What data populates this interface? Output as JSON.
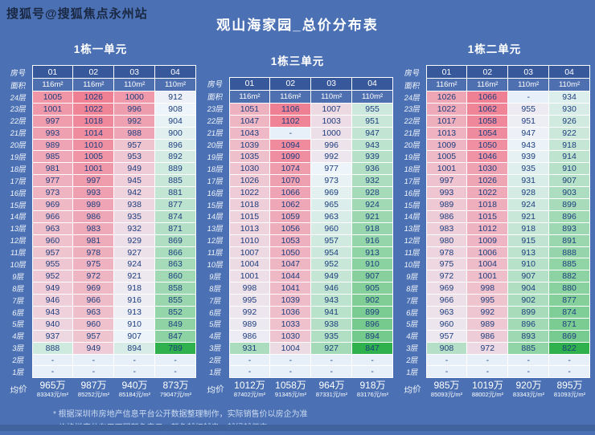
{
  "watermark": "搜狐号@搜狐焦点永州站",
  "title": "观山海家园_总价分布表",
  "labels": {
    "room_no": "房号",
    "area": "面积",
    "avg": "均价"
  },
  "footnotes": [
    "* 根据深圳市房地产信息平台公开数据整理制作，实际销售价以房企为准",
    "* 价格梯度分布用不同颜色表示，颜色越红越贵，越绿越便宜"
  ],
  "colors": {
    "background": "#4b71b4",
    "header_bg": "#37589b",
    "area_bg": "#4f70b0",
    "grid": "#ffffff",
    "cell_text": "#1d3d7d",
    "high_color": "#ef8094",
    "mid_color": "#edf4fa",
    "low_color": "#2fb14d",
    "empty_cell": "#e7f0f9"
  },
  "chart_data": {
    "type": "heatmap-table",
    "note": "values are total prices in 万 (10k CNY); redder = more expensive, greener = cheaper",
    "tables": [
      {
        "name": "1栋一单元",
        "columns": [
          "01",
          "02",
          "03",
          "04"
        ],
        "areas": [
          "116m²",
          "116m²",
          "110m²",
          "110m²"
        ],
        "floors": [
          "24层",
          "23层",
          "22层",
          "21层",
          "20层",
          "19层",
          "18层",
          "17层",
          "16层",
          "15层",
          "14层",
          "13层",
          "12层",
          "11层",
          "10层",
          "9层",
          "8层",
          "7层",
          "6层",
          "5层",
          "4层",
          "3层",
          "2层",
          "1层"
        ],
        "values": [
          [
            1005,
            1026,
            1000,
            912
          ],
          [
            1001,
            1022,
            996,
            908
          ],
          [
            997,
            1018,
            992,
            904
          ],
          [
            993,
            1014,
            988,
            900
          ],
          [
            989,
            1010,
            957,
            896
          ],
          [
            985,
            1005,
            953,
            892
          ],
          [
            981,
            1001,
            949,
            889
          ],
          [
            977,
            997,
            945,
            885
          ],
          [
            973,
            993,
            942,
            881
          ],
          [
            969,
            989,
            938,
            877
          ],
          [
            966,
            986,
            935,
            874
          ],
          [
            963,
            983,
            932,
            871
          ],
          [
            960,
            981,
            929,
            869
          ],
          [
            957,
            978,
            927,
            866
          ],
          [
            955,
            975,
            924,
            863
          ],
          [
            952,
            972,
            921,
            860
          ],
          [
            949,
            969,
            918,
            858
          ],
          [
            946,
            966,
            916,
            855
          ],
          [
            943,
            963,
            913,
            852
          ],
          [
            940,
            960,
            910,
            849
          ],
          [
            937,
            957,
            907,
            847
          ],
          [
            888,
            949,
            894,
            789
          ],
          [
            "-",
            "-",
            "-",
            "-"
          ],
          [
            "-",
            "-",
            "-",
            "-"
          ]
        ],
        "avg_total": [
          "965万",
          "987万",
          "940万",
          "873万"
        ],
        "avg_unit": [
          "83343元/m²",
          "85252元/m²",
          "85184元/m²",
          "79047元/m²"
        ]
      },
      {
        "name": "1栋三单元",
        "columns": [
          "01",
          "02",
          "03",
          "04"
        ],
        "areas": [
          "116m²",
          "116m²",
          "110m²",
          "110m²"
        ],
        "floors": [
          "23层",
          "22层",
          "21层",
          "20层",
          "19层",
          "18层",
          "17层",
          "16层",
          "15层",
          "14层",
          "13层",
          "12层",
          "11层",
          "10层",
          "9层",
          "8层",
          "7层",
          "6层",
          "5层",
          "4层",
          "3层",
          "2层",
          "1层"
        ],
        "values": [
          [
            1051,
            1106,
            1007,
            955
          ],
          [
            1047,
            1102,
            1003,
            951
          ],
          [
            1043,
            "-",
            1000,
            947
          ],
          [
            1039,
            1094,
            996,
            943
          ],
          [
            1035,
            1090,
            992,
            939
          ],
          [
            1030,
            1074,
            977,
            936
          ],
          [
            1026,
            1070,
            973,
            932
          ],
          [
            1022,
            1066,
            969,
            928
          ],
          [
            1018,
            1062,
            965,
            924
          ],
          [
            1015,
            1059,
            963,
            921
          ],
          [
            1013,
            1056,
            960,
            918
          ],
          [
            1010,
            1053,
            957,
            916
          ],
          [
            1007,
            1050,
            954,
            913
          ],
          [
            1004,
            1047,
            952,
            910
          ],
          [
            1001,
            1044,
            949,
            907
          ],
          [
            998,
            1041,
            946,
            905
          ],
          [
            995,
            1039,
            943,
            902
          ],
          [
            992,
            1036,
            941,
            899
          ],
          [
            989,
            1033,
            938,
            896
          ],
          [
            986,
            1030,
            935,
            894
          ],
          [
            931,
            1004,
            927,
            847
          ],
          [
            "-",
            "-",
            "-",
            "-"
          ],
          [
            "-",
            "-",
            "-",
            "-"
          ]
        ],
        "avg_total": [
          "1012万",
          "1058万",
          "964万",
          "918万"
        ],
        "avg_unit": [
          "87402元/m²",
          "91345元/m²",
          "87331元/m²",
          "83176元/m²"
        ]
      },
      {
        "name": "1栋二单元",
        "columns": [
          "01",
          "02",
          "03",
          "04"
        ],
        "areas": [
          "116m²",
          "116m²",
          "110m²",
          "110m²"
        ],
        "floors": [
          "24层",
          "23层",
          "22层",
          "21层",
          "20层",
          "19层",
          "18层",
          "17层",
          "16层",
          "15层",
          "14层",
          "13层",
          "12层",
          "11层",
          "10层",
          "9层",
          "8层",
          "7层",
          "6层",
          "5层",
          "4层",
          "3层",
          "2层",
          "1层"
        ],
        "values": [
          [
            1026,
            1066,
            "-",
            934
          ],
          [
            1022,
            1062,
            955,
            930
          ],
          [
            1017,
            1058,
            951,
            926
          ],
          [
            1013,
            1054,
            947,
            922
          ],
          [
            1009,
            1050,
            943,
            918
          ],
          [
            1005,
            1046,
            939,
            914
          ],
          [
            1001,
            1030,
            935,
            910
          ],
          [
            997,
            1026,
            931,
            907
          ],
          [
            993,
            1022,
            928,
            903
          ],
          [
            989,
            1018,
            924,
            899
          ],
          [
            986,
            1015,
            921,
            896
          ],
          [
            983,
            1012,
            918,
            893
          ],
          [
            980,
            1009,
            915,
            891
          ],
          [
            978,
            1006,
            913,
            888
          ],
          [
            975,
            1004,
            910,
            885
          ],
          [
            972,
            1001,
            907,
            882
          ],
          [
            969,
            998,
            904,
            880
          ],
          [
            966,
            995,
            902,
            877
          ],
          [
            963,
            992,
            899,
            874
          ],
          [
            960,
            989,
            896,
            871
          ],
          [
            957,
            986,
            893,
            869
          ],
          [
            908,
            972,
            885,
            822
          ],
          [
            "-",
            "-",
            "-",
            "-"
          ],
          [
            "-",
            "-",
            "-",
            "-"
          ]
        ],
        "avg_total": [
          "985万",
          "1019万",
          "920万",
          "895万"
        ],
        "avg_unit": [
          "85093元/m²",
          "88002元/m²",
          "83343元/m²",
          "81093元/m²"
        ]
      }
    ]
  }
}
